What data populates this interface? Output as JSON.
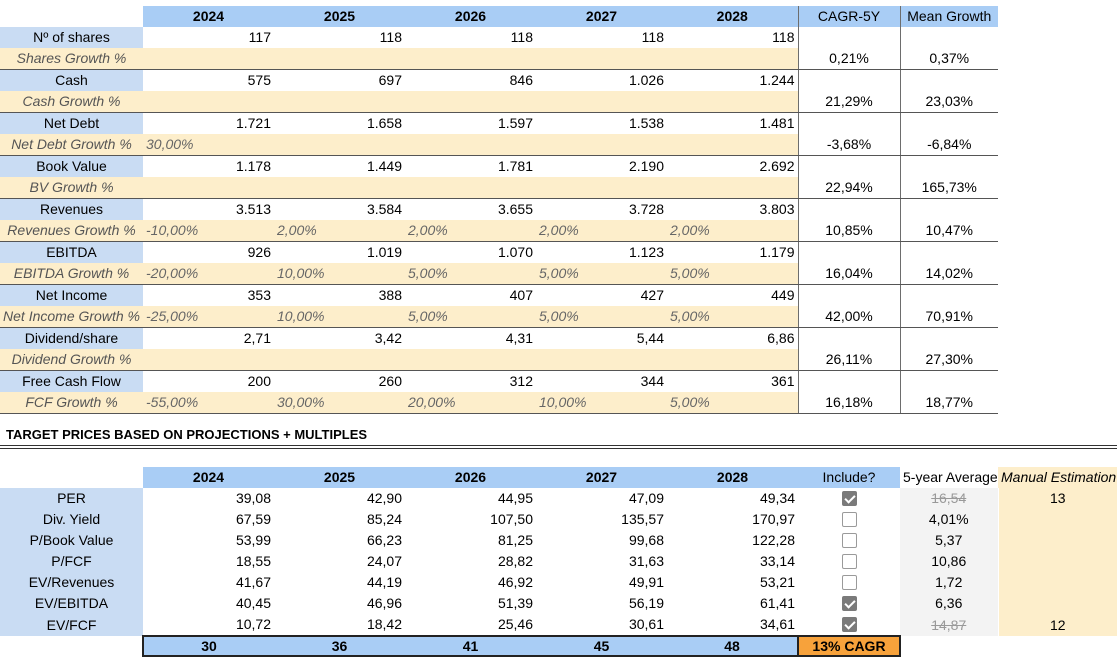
{
  "projections": {
    "years": [
      "2024",
      "2025",
      "2026",
      "2027",
      "2028"
    ],
    "cagr_header": "CAGR-5Y",
    "mean_header": "Mean Growth",
    "metrics": [
      {
        "label": "Nº of shares",
        "values": [
          "117",
          "118",
          "118",
          "118",
          "118"
        ],
        "growth_label": "Shares Growth %",
        "growth": [
          "",
          "",
          "",
          "",
          ""
        ],
        "cagr": "0,21%",
        "mean": "0,37%"
      },
      {
        "label": "Cash",
        "values": [
          "575",
          "697",
          "846",
          "1.026",
          "1.244"
        ],
        "growth_label": "Cash Growth %",
        "growth": [
          "",
          "",
          "",
          "",
          ""
        ],
        "cagr": "21,29%",
        "mean": "23,03%"
      },
      {
        "label": "Net Debt",
        "values": [
          "1.721",
          "1.658",
          "1.597",
          "1.538",
          "1.481"
        ],
        "growth_label": "Net Debt Growth %",
        "growth": [
          "30,00%",
          "",
          "",
          "",
          ""
        ],
        "cagr": "-3,68%",
        "mean": "-6,84%"
      },
      {
        "label": "Book Value",
        "values": [
          "1.178",
          "1.449",
          "1.781",
          "2.190",
          "2.692"
        ],
        "growth_label": "BV Growth %",
        "growth": [
          "",
          "",
          "",
          "",
          ""
        ],
        "cagr": "22,94%",
        "mean": "165,73%"
      },
      {
        "label": "Revenues",
        "values": [
          "3.513",
          "3.584",
          "3.655",
          "3.728",
          "3.803"
        ],
        "growth_label": "Revenues Growth %",
        "growth": [
          "-10,00%",
          "2,00%",
          "2,00%",
          "2,00%",
          "2,00%"
        ],
        "cagr": "10,85%",
        "mean": "10,47%"
      },
      {
        "label": "EBITDA",
        "values": [
          "926",
          "1.019",
          "1.070",
          "1.123",
          "1.179"
        ],
        "growth_label": "EBITDA Growth %",
        "growth": [
          "-20,00%",
          "10,00%",
          "5,00%",
          "5,00%",
          "5,00%"
        ],
        "cagr": "16,04%",
        "mean": "14,02%"
      },
      {
        "label": "Net Income",
        "values": [
          "353",
          "388",
          "407",
          "427",
          "449"
        ],
        "growth_label": "Net Income Growth %",
        "growth": [
          "-25,00%",
          "10,00%",
          "5,00%",
          "5,00%",
          "5,00%"
        ],
        "cagr": "42,00%",
        "mean": "70,91%"
      },
      {
        "label": "Dividend/share",
        "values": [
          "2,71",
          "3,42",
          "4,31",
          "5,44",
          "6,86"
        ],
        "growth_label": "Dividend Growth %",
        "growth": [
          "",
          "",
          "",
          "",
          ""
        ],
        "cagr": "26,11%",
        "mean": "27,30%"
      },
      {
        "label": "Free Cash Flow",
        "values": [
          "200",
          "260",
          "312",
          "344",
          "361"
        ],
        "growth_label": "FCF Growth %",
        "growth": [
          "-55,00%",
          "30,00%",
          "20,00%",
          "10,00%",
          "5,00%"
        ],
        "cagr": "16,18%",
        "mean": "18,77%"
      }
    ]
  },
  "target_prices": {
    "heading": "TARGET PRICES BASED ON PROJECTIONS + MULTIPLES",
    "years": [
      "2024",
      "2025",
      "2026",
      "2027",
      "2028"
    ],
    "include_header": "Include?",
    "avg_header": "5-year Average",
    "manual_header": "Manual Estimation",
    "rows": [
      {
        "label": "PER",
        "values": [
          "39,08",
          "42,90",
          "44,95",
          "47,09",
          "49,34"
        ],
        "include": true,
        "avg": "16,54",
        "avg_struck": true,
        "manual": "13"
      },
      {
        "label": "Div. Yield",
        "values": [
          "67,59",
          "85,24",
          "107,50",
          "135,57",
          "170,97"
        ],
        "include": false,
        "avg": "4,01%",
        "avg_struck": false,
        "manual": ""
      },
      {
        "label": "P/Book Value",
        "values": [
          "53,99",
          "66,23",
          "81,25",
          "99,68",
          "122,28"
        ],
        "include": false,
        "avg": "5,37",
        "avg_struck": false,
        "manual": ""
      },
      {
        "label": "P/FCF",
        "values": [
          "18,55",
          "24,07",
          "28,82",
          "31,63",
          "33,14"
        ],
        "include": false,
        "avg": "10,86",
        "avg_struck": false,
        "manual": ""
      },
      {
        "label": "EV/Revenues",
        "values": [
          "41,67",
          "44,19",
          "46,92",
          "49,91",
          "53,21"
        ],
        "include": false,
        "avg": "1,72",
        "avg_struck": false,
        "manual": ""
      },
      {
        "label": "EV/EBITDA",
        "values": [
          "40,45",
          "46,96",
          "51,39",
          "56,19",
          "61,41"
        ],
        "include": true,
        "avg": "6,36",
        "avg_struck": false,
        "manual": ""
      },
      {
        "label": "EV/FCF",
        "values": [
          "10,72",
          "18,42",
          "25,46",
          "30,61",
          "34,61"
        ],
        "include": true,
        "avg": "14,87",
        "avg_struck": true,
        "manual": "12"
      }
    ],
    "totals": [
      "30",
      "36",
      "41",
      "45",
      "48"
    ],
    "cagr_total": "13% CAGR"
  }
}
